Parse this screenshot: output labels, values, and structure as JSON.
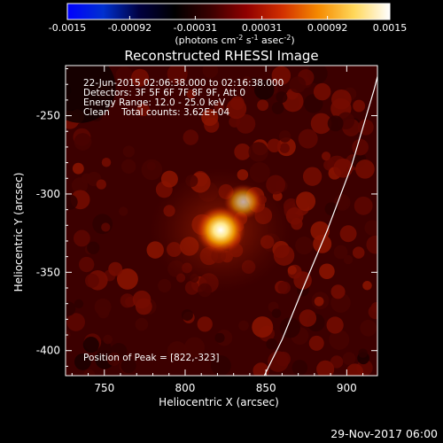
{
  "chart_data": {
    "type": "heatmap",
    "title": "Reconstructed RHESSI Image",
    "colorbar": {
      "ticks": [
        "-0.0015",
        "-0.00092",
        "-0.00031",
        "0.00031",
        "0.00092",
        "0.0015"
      ],
      "range": [
        -0.0015,
        0.0015
      ],
      "units_parts": [
        "(photons cm",
        "-2",
        " s",
        "-1",
        " asec",
        "-2",
        ")"
      ],
      "stops": [
        "#0000ff",
        "#0030d0",
        "#000040",
        "#000000",
        "#3a0000",
        "#900000",
        "#d23000",
        "#f58a00",
        "#ffd75a",
        "#ffffff"
      ]
    },
    "xlabel": "Heliocentric X (arcsec)",
    "ylabel": "Heliocentric Y (arcsec)",
    "xlim": [
      726,
      919
    ],
    "ylim": [
      -416,
      -218
    ],
    "xticks": [
      750,
      800,
      850,
      900
    ],
    "yticks": [
      -250,
      -300,
      -350,
      -400
    ],
    "info_lines": [
      "22-Jun-2015 02:06:38.000 to 02:16:38.000",
      "Detectors: 3F 5F 6F 7F 8F 9F, Att 0",
      "Energy Range: 12.0 - 25.0 keV",
      "Clean    Total counts: 3.62E+04"
    ],
    "peak_label": "Position of Peak = [822,-323]",
    "peak": [
      822,
      -323
    ],
    "limb": [
      [
        849,
        -416
      ],
      [
        860,
        -393
      ],
      [
        873,
        -360
      ],
      [
        888,
        -323
      ],
      [
        903,
        -282
      ],
      [
        917,
        -233
      ],
      [
        919,
        -225
      ]
    ],
    "date_stamp": "29-Nov-2017 06:00"
  }
}
